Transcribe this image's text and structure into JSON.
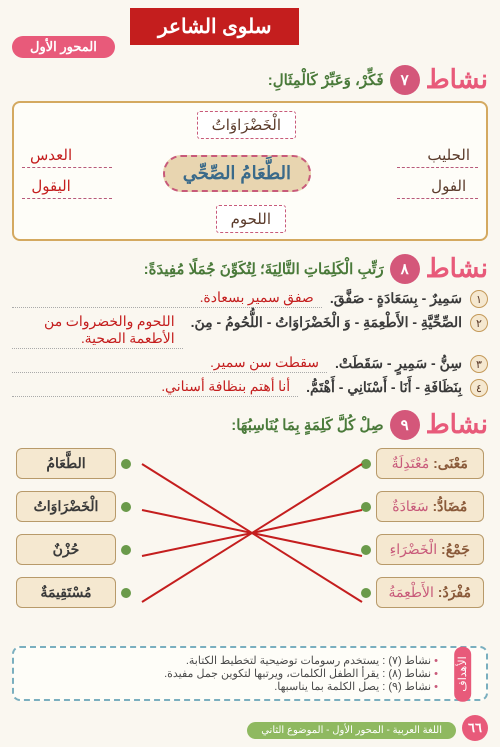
{
  "banner": "سلوى الشاعر",
  "axis": "المحور الأول",
  "activities": {
    "a7": {
      "num": "٧",
      "title": "نشاط",
      "prompt": "فَكِّرْ، وَعَبِّرْ كَالْمِثَالِ:"
    },
    "a8": {
      "num": "٨",
      "title": "نشاط",
      "prompt": "رَتِّبِ الْكَلِمَاتِ التَّالِيَةَ؛ لِتُكَوِّنَ جُمَلًا مُفِيدَةً:"
    },
    "a9": {
      "num": "٩",
      "title": "نشاط",
      "prompt": "صِلْ كُلَّ كَلِمَةٍ بِمَا يُنَاسِبُهَا:"
    }
  },
  "diagram": {
    "center": "الطَّعَامُ الصِّحِّي",
    "top": "الْخَضْرَاوَاتُ",
    "bottom": "اللحوم",
    "right": [
      "الحليب",
      "الفول"
    ],
    "left": [
      "العدس",
      "اليقول"
    ]
  },
  "sentences": [
    {
      "n": "١",
      "words": "سَمِيرٌ - بِسَعَادَةٍ - صَفَّقَ.",
      "answer": "صفق سمير بسعادة."
    },
    {
      "n": "٢",
      "words": "الصِّحِّيَّةِ - الأَطْعِمَةِ - وَ الْخَضْرَاوَاتُ - اللُّحُومُ - مِنَ.",
      "answer": "اللحوم والخضروات من الأطعمة الصحية."
    },
    {
      "n": "٣",
      "words": "سِنُّ - سَمِيرٍ - سَقَطَتْ.",
      "answer": "سقطت سن سمير."
    },
    {
      "n": "٤",
      "words": "بِنَظَافَةِ - أَنَا - أَسْنَانِي - أَهْتَمُّ.",
      "answer": "أنا أهتم بنظافة أسناني."
    }
  ],
  "matching": {
    "right": [
      {
        "label": "مَعْنَى:",
        "word": "مُعْتَدِلَةٌ"
      },
      {
        "label": "مُضَادُّ:",
        "word": "سَعَادَةٌ"
      },
      {
        "label": "جَمْعُ:",
        "word": "الْخَضْرَاءِ"
      },
      {
        "label": "مُفْرَدُ:",
        "word": "الأَطْعِمَةُ"
      }
    ],
    "left": [
      "الطَّعَامُ",
      "الْخَضْرَاوَاتُ",
      "حُزْنٌ",
      "مُسْتَقِيمَةٌ"
    ],
    "lines": [
      {
        "from": 0,
        "to": 3
      },
      {
        "from": 1,
        "to": 2
      },
      {
        "from": 2,
        "to": 1
      },
      {
        "from": 3,
        "to": 0
      }
    ],
    "colors": {
      "line": "#c41e1e",
      "dot": "#6a9a4a"
    }
  },
  "footer": {
    "label": "الأهداف",
    "items": [
      "نشاط (٧) : يستخدم رسومات توضيحية لتخطيط الكتابة.",
      "نشاط (٨) : يقرأ الطفل الكلمات، ويرتبها لتكوين جمل مفيدة.",
      "نشاط (٩) : يصل الكلمة بما يناسبها."
    ]
  },
  "pageNum": "٦٦",
  "bottomTab": "اللغة العربية - المحور الأول - الموضوع الثاني"
}
